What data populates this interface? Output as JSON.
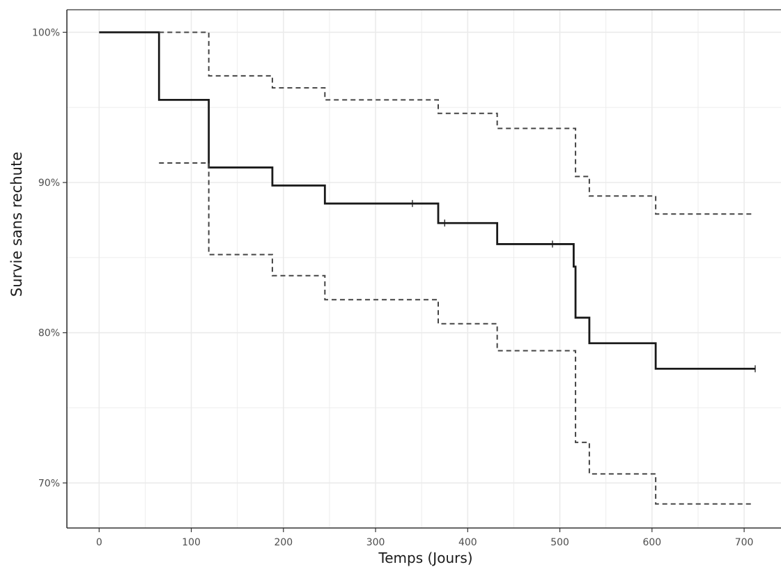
{
  "chart_data": {
    "type": "line",
    "title": "",
    "xlabel": "Temps (Jours)",
    "ylabel": "Survie sans rechute",
    "xlim": [
      -35,
      740
    ],
    "ylim": [
      67.0,
      101.5
    ],
    "x_ticks": [
      0,
      100,
      200,
      300,
      400,
      500,
      600,
      700
    ],
    "x_tick_labels": [
      "0",
      "100",
      "200",
      "300",
      "400",
      "500",
      "600",
      "700"
    ],
    "y_ticks": [
      70,
      80,
      90,
      100
    ],
    "y_tick_labels": [
      "70%",
      "80%",
      "90%",
      "100%"
    ],
    "grid": true,
    "colors": {
      "estimate": "#1a1a1a",
      "ci": "#444444",
      "grid": "#ebebeb",
      "axis": "#333333",
      "tick_text": "#4d4d4d"
    },
    "series": [
      {
        "role": "estimate",
        "style": "solid",
        "steps": [
          [
            0,
            100
          ],
          [
            65,
            95.5
          ],
          [
            119,
            91.0
          ],
          [
            188,
            89.8
          ],
          [
            245,
            88.6
          ],
          [
            368,
            87.3
          ],
          [
            432,
            85.9
          ],
          [
            515,
            84.4
          ],
          [
            517,
            81.0
          ],
          [
            532,
            79.3
          ],
          [
            604,
            77.6
          ],
          [
            712,
            77.6
          ]
        ],
        "censored_x": [
          340,
          375,
          492,
          712
        ]
      },
      {
        "role": "ci_upper",
        "style": "dashed",
        "steps": [
          [
            65,
            100
          ],
          [
            119,
            97.1
          ],
          [
            188,
            96.3
          ],
          [
            245,
            95.5
          ],
          [
            368,
            94.6
          ],
          [
            432,
            93.6
          ],
          [
            517,
            90.4
          ],
          [
            532,
            89.1
          ],
          [
            604,
            87.9
          ],
          [
            708,
            87.9
          ]
        ]
      },
      {
        "role": "ci_lower",
        "style": "dashed",
        "steps": [
          [
            65,
            91.3
          ],
          [
            119,
            85.2
          ],
          [
            188,
            83.8
          ],
          [
            245,
            82.2
          ],
          [
            368,
            80.6
          ],
          [
            432,
            78.8
          ],
          [
            517,
            72.7
          ],
          [
            532,
            70.6
          ],
          [
            604,
            68.6
          ],
          [
            708,
            68.6
          ]
        ]
      }
    ]
  }
}
